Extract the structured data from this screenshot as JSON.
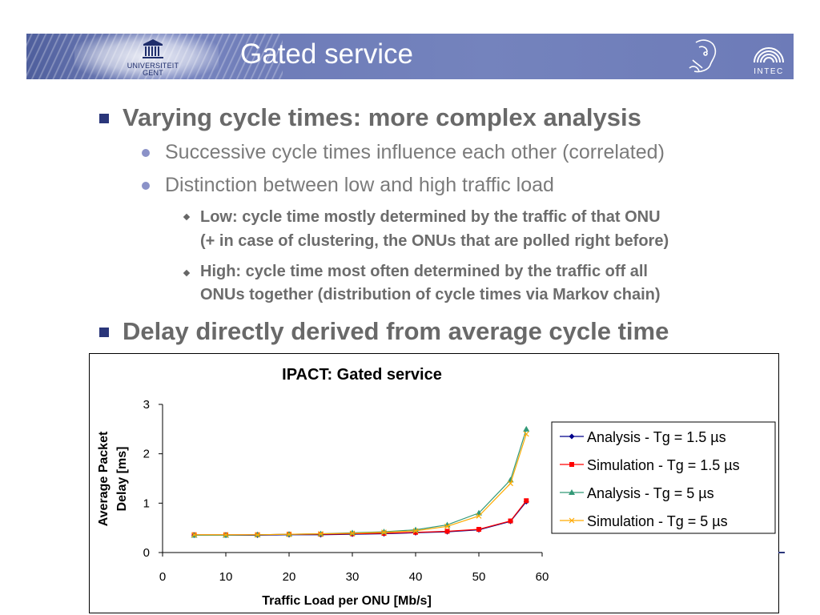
{
  "header": {
    "title": "Gated service",
    "logo_left_text_1": "UNIVERSITEIT",
    "logo_left_text_2": "GENT",
    "logo_right_text": "INTEC",
    "colors": {
      "banner": "#6e7cb8",
      "title_text": "#ffffff",
      "bullet_square": "#2a367a"
    }
  },
  "bullets": [
    {
      "level": 1,
      "text": "Varying cycle times: more complex analysis"
    },
    {
      "level": 2,
      "text": "Successive cycle times influence each other (correlated)"
    },
    {
      "level": 2,
      "text": "Distinction between low and high traffic load"
    },
    {
      "level": 3,
      "lines": [
        "Low: cycle time mostly determined by the traffic of that ONU",
        "(+ in case of clustering, the ONUs that are polled right before)"
      ]
    },
    {
      "level": 3,
      "lines": [
        "High: cycle time most often determined by the traffic off all",
        "ONUs together (distribution of cycle times via Markov chain)"
      ]
    },
    {
      "level": 1,
      "text": "Delay directly derived from average cycle time"
    }
  ],
  "chart_data": {
    "type": "line",
    "title": "IPACT: Gated service",
    "xlabel": "Traffic Load per ONU [Mb/s]",
    "ylabel": "Average Packet Delay [ms]",
    "ylabel_lines": [
      "Average Packet",
      "Delay [ms]"
    ],
    "xlim": [
      0,
      60
    ],
    "ylim": [
      0,
      3
    ],
    "xticks": [
      0,
      10,
      20,
      30,
      40,
      50,
      60
    ],
    "yticks": [
      0,
      1,
      2,
      3
    ],
    "grid": false,
    "legend_position": "right",
    "x": [
      5,
      10,
      15,
      20,
      25,
      30,
      35,
      40,
      45,
      50,
      55,
      57.5
    ],
    "series": [
      {
        "name": "Analysis - Tg = 1.5 µs",
        "color": "#00008b",
        "marker": "diamond",
        "values": [
          0.35,
          0.35,
          0.35,
          0.36,
          0.36,
          0.37,
          0.38,
          0.4,
          0.42,
          0.46,
          0.63,
          1.03
        ]
      },
      {
        "name": "Simulation - Tg = 1.5 µs",
        "color": "#ff0000",
        "marker": "square",
        "values": [
          0.36,
          0.36,
          0.36,
          0.37,
          0.37,
          0.38,
          0.39,
          0.41,
          0.43,
          0.47,
          0.64,
          1.05
        ]
      },
      {
        "name": "Analysis - Tg = 5 µs",
        "color": "#339977",
        "marker": "triangle",
        "values": [
          0.35,
          0.35,
          0.36,
          0.37,
          0.38,
          0.4,
          0.42,
          0.46,
          0.56,
          0.8,
          1.47,
          2.5
        ]
      },
      {
        "name": "Simulation - Tg = 5 µs",
        "color": "#ffaa00",
        "marker": "x",
        "values": [
          0.36,
          0.36,
          0.36,
          0.37,
          0.38,
          0.39,
          0.41,
          0.44,
          0.53,
          0.74,
          1.4,
          2.4
        ]
      }
    ]
  }
}
